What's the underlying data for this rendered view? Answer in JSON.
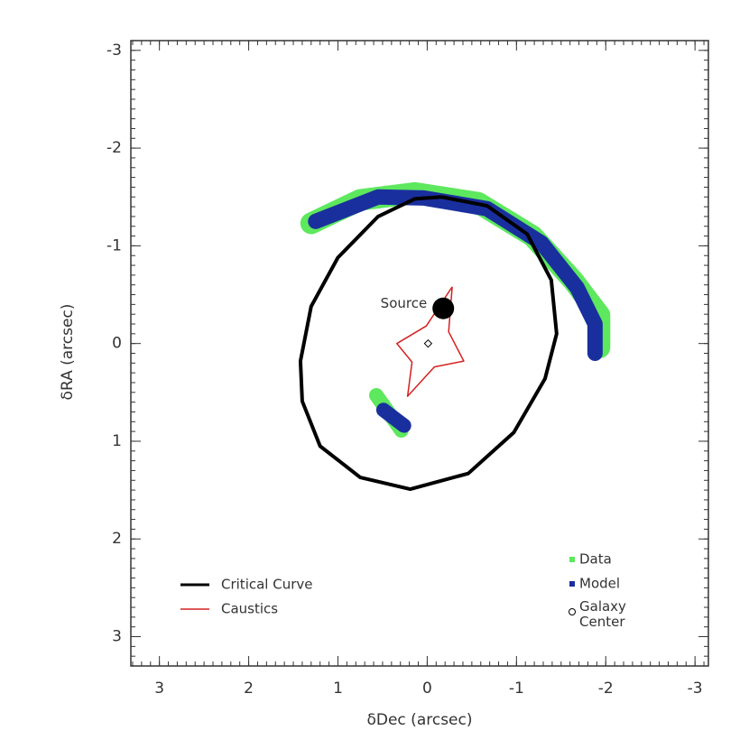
{
  "chart_data": {
    "type": "lens-model",
    "x_label": "δDec (arcsec)",
    "y_label": "δRA (arcsec)",
    "xlim": [
      3.32,
      -3.15
    ],
    "ylim": [
      -3.1,
      3.3
    ],
    "xticks": [
      3,
      2,
      1,
      0,
      -1,
      -2,
      -3
    ],
    "yticks": [
      -3,
      -2,
      -1,
      0,
      1,
      2,
      3
    ],
    "minor_tick_step": 0.1,
    "series": [
      {
        "name": "Data",
        "kind": "band",
        "color": "#5de85d",
        "legend": "lower right",
        "parts": [
          {
            "x": [
              1.3,
              0.75,
              0.14,
              -0.57,
              -1.18,
              -1.63,
              -1.93,
              -1.93
            ],
            "y": [
              -1.23,
              -1.47,
              -1.54,
              -1.44,
              -1.1,
              -0.65,
              -0.29,
              0.04
            ]
          },
          {
            "x": [
              0.57,
              0.29
            ],
            "y": [
              0.53,
              0.89
            ]
          }
        ]
      },
      {
        "name": "Model",
        "kind": "band",
        "color": "#1a2f9e",
        "legend": "lower right",
        "parts": [
          {
            "x": [
              1.25,
              0.55,
              0.04,
              -0.67,
              -1.28,
              -1.68,
              -1.88,
              -1.88
            ],
            "y": [
              -1.25,
              -1.5,
              -1.49,
              -1.38,
              -1.03,
              -0.57,
              -0.2,
              0.1
            ]
          },
          {
            "x": [
              0.49,
              0.26
            ],
            "y": [
              0.68,
              0.84
            ]
          }
        ]
      },
      {
        "name": "Critical Curve",
        "kind": "curve",
        "color": "#000000",
        "legend": "lower left",
        "parts": [
          {
            "x": [
              -0.16,
              -0.67,
              -1.12,
              -1.39,
              -1.45,
              -1.32,
              -0.97,
              -0.46,
              0.19,
              0.75,
              1.2,
              1.4,
              1.42,
              1.3,
              1.0,
              0.55,
              0.14,
              -0.16
            ],
            "y": [
              -1.5,
              -1.41,
              -1.12,
              -0.65,
              -0.1,
              0.36,
              0.91,
              1.33,
              1.49,
              1.37,
              1.05,
              0.59,
              0.18,
              -0.38,
              -0.88,
              -1.3,
              -1.48,
              -1.5
            ]
          }
        ]
      },
      {
        "name": "Caustics",
        "kind": "curve",
        "color": "#d42020",
        "legend": "lower left",
        "parts": [
          {
            "x": [
              -0.28,
              0.01,
              0.34,
              0.17,
              0.22,
              -0.08,
              -0.41,
              -0.24,
              -0.28
            ],
            "y": [
              -0.58,
              -0.18,
              0.0,
              0.19,
              0.54,
              0.24,
              0.18,
              -0.12,
              -0.58
            ]
          }
        ]
      },
      {
        "name": "Galaxy Center",
        "kind": "point",
        "color": "#000000",
        "legend": "lower right",
        "parts": [
          {
            "x": [
              -0.01
            ],
            "y": [
              0.0
            ]
          }
        ]
      }
    ],
    "annotations": [
      {
        "text": "Source",
        "x": -0.18,
        "y": -0.36
      }
    ]
  }
}
